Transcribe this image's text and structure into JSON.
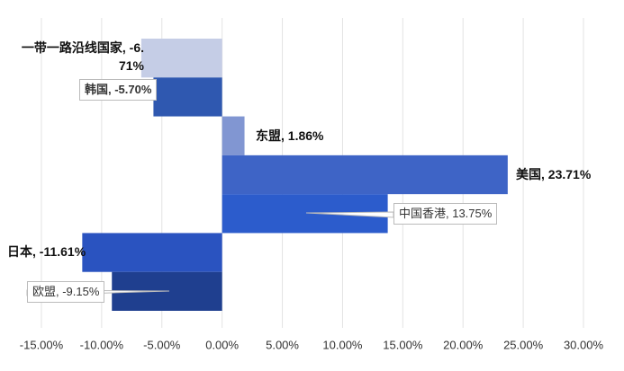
{
  "chart_data": {
    "type": "bar",
    "orientation": "horizontal",
    "categories": [
      "一带一路沿线国家",
      "韩国",
      "东盟",
      "美国",
      "中国香港",
      "日本",
      "欧盟"
    ],
    "values": [
      -6.71,
      -5.7,
      1.86,
      23.71,
      13.75,
      -11.61,
      -9.15
    ],
    "value_labels": [
      "一带一路沿线国家, -6.71%",
      "韩国, -5.70%",
      "东盟, 1.86%",
      "美国, 23.71%",
      "中国香港, 13.75%",
      "日本, -11.61%",
      "欧盟, -9.15%"
    ],
    "colors": [
      "#c5cde6",
      "#2f58b0",
      "#8196d2",
      "#3e64c6",
      "#2c5ccc",
      "#2a53c0",
      "#1f3f8f"
    ],
    "xlim": [
      -15,
      30
    ],
    "xticks": [
      {
        "value": -15,
        "label": "-15.00%"
      },
      {
        "value": -10,
        "label": "-10.00%"
      },
      {
        "value": -5,
        "label": "-5.00%"
      },
      {
        "value": 0,
        "label": "0.00%"
      },
      {
        "value": 5,
        "label": "5.00%"
      },
      {
        "value": 10,
        "label": "10.00%"
      },
      {
        "value": 15,
        "label": "15.00%"
      },
      {
        "value": 20,
        "label": "20.00%"
      },
      {
        "value": 25,
        "label": "25.00%"
      },
      {
        "value": 30,
        "label": "30.00%"
      }
    ],
    "grid": true
  }
}
